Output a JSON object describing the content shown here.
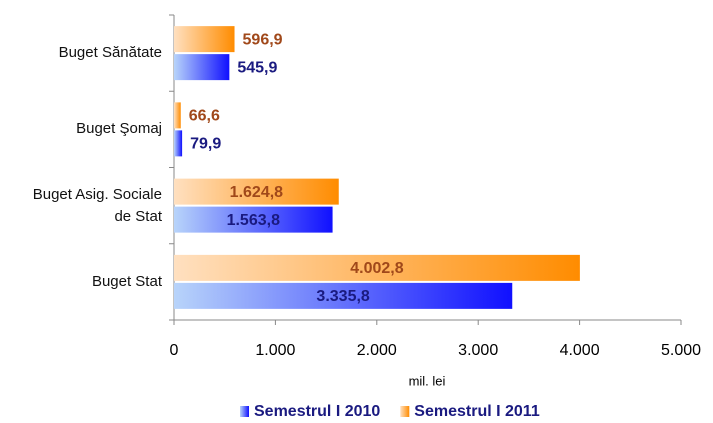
{
  "chart_data": {
    "type": "hbar",
    "categories": [
      "Buget Sănătate",
      "Buget Şomaj",
      "Buget Asig. Sociale de Stat",
      "Buget Stat"
    ],
    "series": [
      {
        "name": "Semestrul I 2010",
        "color": "#1010ff",
        "label_color": "#1a1a80",
        "values": [
          545.9,
          79.9,
          1563.8,
          3335.8
        ],
        "value_labels": [
          "545,9",
          "79,9",
          "1.563,8",
          "3.335,8"
        ]
      },
      {
        "name": "Semestrul I 2011",
        "color": "#ff8c00",
        "label_color": "#a0481a",
        "values": [
          596.9,
          66.6,
          1624.8,
          4002.8
        ],
        "value_labels": [
          "596,9",
          "66,6",
          "1.624,8",
          "4.002,8"
        ]
      }
    ],
    "xlabel": "mil. lei",
    "xlim": [
      0,
      5000
    ],
    "xticks": [
      0,
      {
        "value": 1000,
        "label": "1.000"
      },
      {
        "value": 2000,
        "label": "2.000"
      },
      {
        "value": 3000,
        "label": "3.000"
      },
      {
        "value": 4000,
        "label": "4.000"
      },
      {
        "value": 5000,
        "label": "5.000"
      }
    ]
  }
}
